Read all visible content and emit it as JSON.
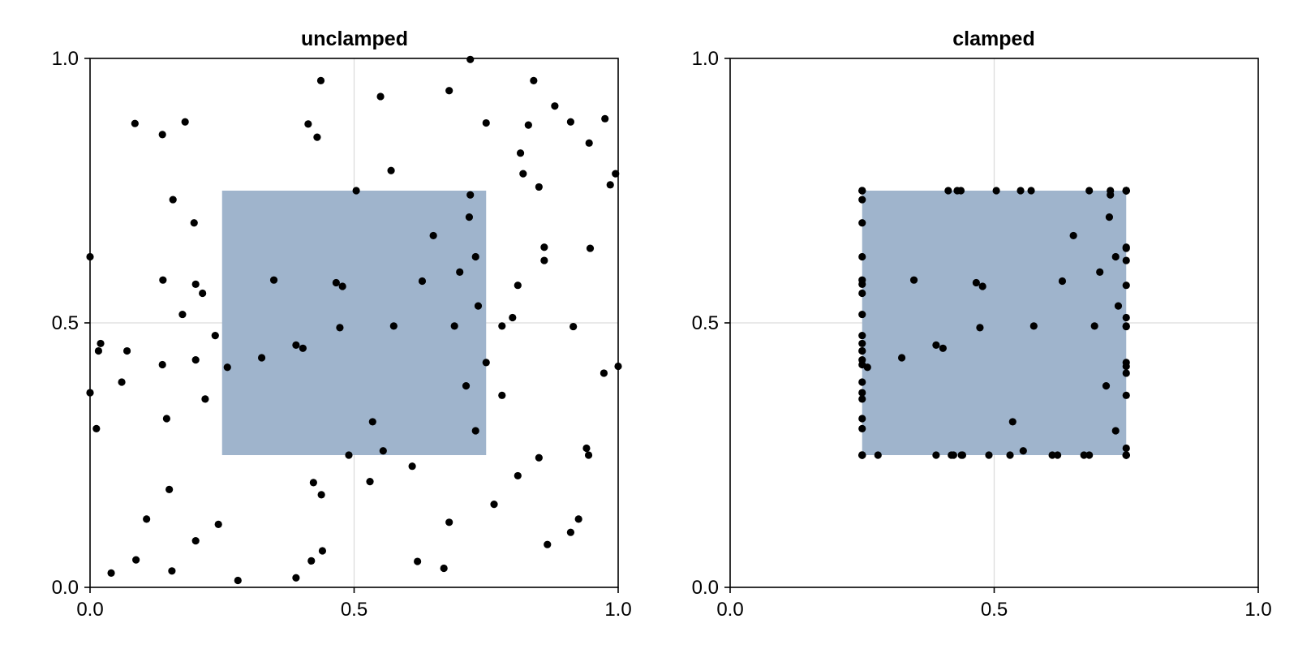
{
  "chart_data": [
    {
      "type": "scatter",
      "title": "unclamped",
      "xlim": [
        0,
        1
      ],
      "ylim": [
        0,
        1
      ],
      "xticks": [
        "0.0",
        "0.5",
        "1.0"
      ],
      "yticks": [
        "0.0",
        "0.5",
        "1.0"
      ],
      "grid": true,
      "rect": {
        "x": [
          0.25,
          0.75
        ],
        "y": [
          0.25,
          0.75
        ],
        "color": "#9fb4cc"
      },
      "marker_color": "#000000",
      "points": [
        [
          0.0,
          0.625
        ],
        [
          0.0,
          0.368
        ],
        [
          0.012,
          0.3
        ],
        [
          0.016,
          0.447
        ],
        [
          0.02,
          0.461
        ],
        [
          0.04,
          0.027
        ],
        [
          0.06,
          0.388
        ],
        [
          0.07,
          0.447
        ],
        [
          0.085,
          0.877
        ],
        [
          0.087,
          0.052
        ],
        [
          0.107,
          0.129
        ],
        [
          0.137,
          0.856
        ],
        [
          0.137,
          0.421
        ],
        [
          0.138,
          0.581
        ],
        [
          0.145,
          0.319
        ],
        [
          0.15,
          0.185
        ],
        [
          0.155,
          0.031
        ],
        [
          0.157,
          0.733
        ],
        [
          0.175,
          0.516
        ],
        [
          0.18,
          0.88
        ],
        [
          0.197,
          0.689
        ],
        [
          0.2,
          0.43
        ],
        [
          0.2,
          0.573
        ],
        [
          0.2,
          0.088
        ],
        [
          0.213,
          0.556
        ],
        [
          0.218,
          0.356
        ],
        [
          0.237,
          0.476
        ],
        [
          0.243,
          0.119
        ],
        [
          0.26,
          0.416
        ],
        [
          0.28,
          0.013
        ],
        [
          0.325,
          0.434
        ],
        [
          0.348,
          0.581
        ],
        [
          0.39,
          0.018
        ],
        [
          0.39,
          0.458
        ],
        [
          0.403,
          0.452
        ],
        [
          0.413,
          0.876
        ],
        [
          0.419,
          0.05
        ],
        [
          0.423,
          0.198
        ],
        [
          0.43,
          0.851
        ],
        [
          0.437,
          0.958
        ],
        [
          0.438,
          0.175
        ],
        [
          0.44,
          0.069
        ],
        [
          0.466,
          0.576
        ],
        [
          0.473,
          0.491
        ],
        [
          0.478,
          0.569
        ],
        [
          0.49,
          0.25
        ],
        [
          0.504,
          0.75
        ],
        [
          0.53,
          0.2
        ],
        [
          0.535,
          0.313
        ],
        [
          0.55,
          0.928
        ],
        [
          0.555,
          0.258
        ],
        [
          0.57,
          0.788
        ],
        [
          0.575,
          0.494
        ],
        [
          0.61,
          0.229
        ],
        [
          0.62,
          0.049
        ],
        [
          0.629,
          0.579
        ],
        [
          0.65,
          0.665
        ],
        [
          0.67,
          0.036
        ],
        [
          0.68,
          0.939
        ],
        [
          0.68,
          0.123
        ],
        [
          0.69,
          0.494
        ],
        [
          0.7,
          0.596
        ],
        [
          0.712,
          0.381
        ],
        [
          0.718,
          0.7
        ],
        [
          0.72,
          0.742
        ],
        [
          0.72,
          0.998
        ],
        [
          0.73,
          0.625
        ],
        [
          0.73,
          0.296
        ],
        [
          0.735,
          0.532
        ],
        [
          0.75,
          0.425
        ],
        [
          0.75,
          0.878
        ],
        [
          0.765,
          0.157
        ],
        [
          0.78,
          0.494
        ],
        [
          0.78,
          0.363
        ],
        [
          0.8,
          0.51
        ],
        [
          0.81,
          0.571
        ],
        [
          0.81,
          0.211
        ],
        [
          0.815,
          0.821
        ],
        [
          0.82,
          0.782
        ],
        [
          0.83,
          0.874
        ],
        [
          0.84,
          0.958
        ],
        [
          0.85,
          0.757
        ],
        [
          0.85,
          0.245
        ],
        [
          0.86,
          0.618
        ],
        [
          0.86,
          0.643
        ],
        [
          0.866,
          0.081
        ],
        [
          0.88,
          0.91
        ],
        [
          0.91,
          0.88
        ],
        [
          0.91,
          0.104
        ],
        [
          0.915,
          0.493
        ],
        [
          0.925,
          0.129
        ],
        [
          0.94,
          0.263
        ],
        [
          0.944,
          0.25
        ],
        [
          0.945,
          0.84
        ],
        [
          0.947,
          0.641
        ],
        [
          0.973,
          0.405
        ],
        [
          0.975,
          0.886
        ],
        [
          0.985,
          0.761
        ],
        [
          0.995,
          0.782
        ],
        [
          1.0,
          0.418
        ]
      ]
    },
    {
      "type": "scatter",
      "title": "clamped",
      "xlim": [
        0,
        1
      ],
      "ylim": [
        0,
        1
      ],
      "xticks": [
        "0.0",
        "0.5",
        "1.0"
      ],
      "yticks": [
        "0.0",
        "0.5",
        "1.0"
      ],
      "grid": true,
      "rect": {
        "x": [
          0.25,
          0.75
        ],
        "y": [
          0.25,
          0.75
        ],
        "color": "#9fb4cc"
      },
      "marker_color": "#000000",
      "clamp": [
        0.25,
        0.75
      ]
    }
  ]
}
